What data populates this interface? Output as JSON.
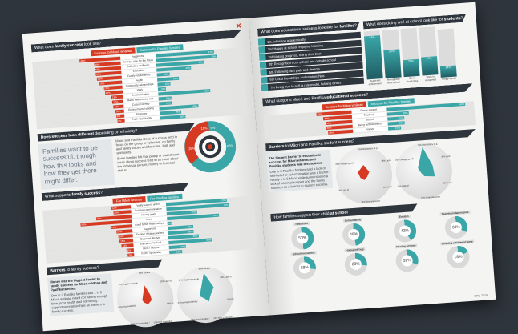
{
  "left": {
    "family_success": {
      "title_pre": "What does ",
      "title_bold": "family success",
      "title_post": " look like?",
      "legend_maori": "Success for Māori whānau",
      "legend_pasifika": "Success for Pasifika families",
      "categories": [
        "Happiness",
        "Having a plan for the future",
        "Collective wellbeing",
        "Education",
        "Family relationships",
        "Health",
        "Community relationships",
        "Work",
        "Communication",
        "Basic needs being met",
        "Cultural identity",
        "Environmental stability",
        "Finances",
        "Faith / Spirituality"
      ],
      "maori": [
        46,
        30,
        30,
        29,
        28,
        26,
        21,
        20,
        13,
        12,
        11,
        10,
        9,
        8
      ],
      "pasifika": [
        67,
        70,
        55,
        40,
        15,
        25,
        15,
        10,
        60,
        15,
        15,
        45,
        25,
        30
      ]
    },
    "ethnicity": {
      "title_bold": "Does success look different",
      "title_post": " depending on ethnicity?",
      "quote": "Families want to be successful, though how this looks and how they get there might differ.",
      "para1": "Māori and Pasifika ideas of success tend to focus on the group or collective, on family and family values and for some, faith and spirituality.",
      "para2": "Some families felt that palagi or mainstream ideas about success tend to be more about the individual person, money or financial status.",
      "target_labels": [
        "19%",
        "9%",
        "25%",
        "65%"
      ]
    },
    "family_supports": {
      "title_pre": "What supports ",
      "title_bold": "family success",
      "title_post": "?",
      "legend_maori": "For Māori whānau",
      "legend_pasifika": "For Pasifika families",
      "categories": [
        "Family support and/or",
        "Positive communication",
        "Having goals",
        "Love",
        "Good family relationships",
        "Happiness",
        "Family / Whānau values",
        "Balanced lifestyle",
        "Education / School",
        "Work / Income",
        "Faith / Spirituality"
      ],
      "maori": [
        22,
        20,
        40,
        58,
        24,
        18,
        16,
        15,
        13,
        8,
        7
      ],
      "pasifika": [
        70,
        72,
        35,
        60,
        5,
        30,
        30,
        35,
        50,
        20,
        15
      ]
    },
    "barriers": {
      "title_bold": "Barriers",
      "title_post": " to family success?",
      "lead": "Money was the biggest barrier to family success for Māori whānau and Pasifika families.",
      "body": "One in 3 Pasifika families and 1 in 5 Māori whānau noted not having enough time, poor health and not having supportive relationships as barriers to family success.",
      "axes": [
        "Lack of money / poor finances",
        "Lack of time",
        "Poor health",
        "Non supportive relationships",
        "Discrimination / Racism",
        "Housing availability and/or cost",
        "Negative outside influences"
      ],
      "maori": [
        40,
        19,
        19,
        17,
        11,
        9,
        9
      ],
      "pasifika": [
        64,
        33,
        15,
        22,
        10,
        16,
        17
      ]
    }
  },
  "right": {
    "edu_success": {
      "title_pre": "What does educational success look like for ",
      "title_bold": "families",
      "title_post": "?",
      "items": [
        "1st  Achieving academically",
        "2nd  Happy at school, enjoying learning",
        "3rd  Making progress, doing their best",
        "4th  Recognition from school and outside school",
        "5th  Following own path and dreams",
        "6th  Good friendships and relationships",
        "7th  Being true to self, a role model, helping others"
      ]
    },
    "doing_well": {
      "title_pre": "What does doing well at school look like for ",
      "title_bold": "students",
      "title_post": "?",
      "categories": [
        "Academic achievement",
        "Recognition from school",
        "Good friendships",
        "Work is completed",
        "I enjoy school"
      ],
      "values": [
        54,
        35,
        21,
        23,
        14
      ],
      "ylim": [
        0,
        60
      ]
    },
    "edu_supports": {
      "title_pre": "What supports Māori and Pasifika ",
      "title_bold": "educational success",
      "title_post": "?",
      "legend_maori": "Success for Māori whānau",
      "legend_pasifika": "Success for Pasifika families",
      "categories": [
        "Family support",
        "Teachers",
        "School",
        "Being self-motivated",
        "Friends"
      ],
      "maori": [
        40,
        32,
        30,
        30,
        28
      ],
      "pasifika": [
        90,
        25,
        20,
        20,
        15
      ]
    },
    "student_barriers": {
      "title_bold": "Barriers",
      "title_post": " to Māori and Pasifika student success?",
      "lead": "The biggest barrier to educational success for Māori whānau and Pasifika students was distractions.",
      "body": "One in 3 Pasifika families said a lack of self-belief or self-motivation was a barrier. Nearly 1 in 5 Māori whānau mentioned a lack of parental support and the family situation as a barrier to student success.",
      "axes": [
        "Distractions (e.g. peer pressure)",
        "Lack of parental support, family situation",
        "Lack of self belief, self motivation",
        "Time pressures, being too busy",
        "Lack of finance",
        "Struggling with challenges"
      ],
      "maori": [
        30,
        18,
        10,
        14,
        13,
        20
      ],
      "pasifika": [
        70,
        30,
        35,
        15,
        10,
        20
      ]
    },
    "home_support": {
      "title_pre": "How families support their child ",
      "title_bold": "at school",
      "items": [
        {
          "label": "Resources",
          "value": 50
        },
        {
          "label": "Conversations",
          "value": 48
        },
        {
          "label": "Emotion",
          "value": 42
        },
        {
          "label": "Teaching independence",
          "value": 33
        },
        {
          "label": "School involvement",
          "value": 28
        },
        {
          "label": "Homework help",
          "value": 28
        },
        {
          "label": "Reading at home",
          "value": 32
        },
        {
          "label": "Providing activities at home",
          "value": 18
        }
      ]
    },
    "footer": "ERO 2019"
  },
  "colors": {
    "maori": "#d63a22",
    "pasifika": "#3aa6a8",
    "dark": "#2f353d"
  }
}
